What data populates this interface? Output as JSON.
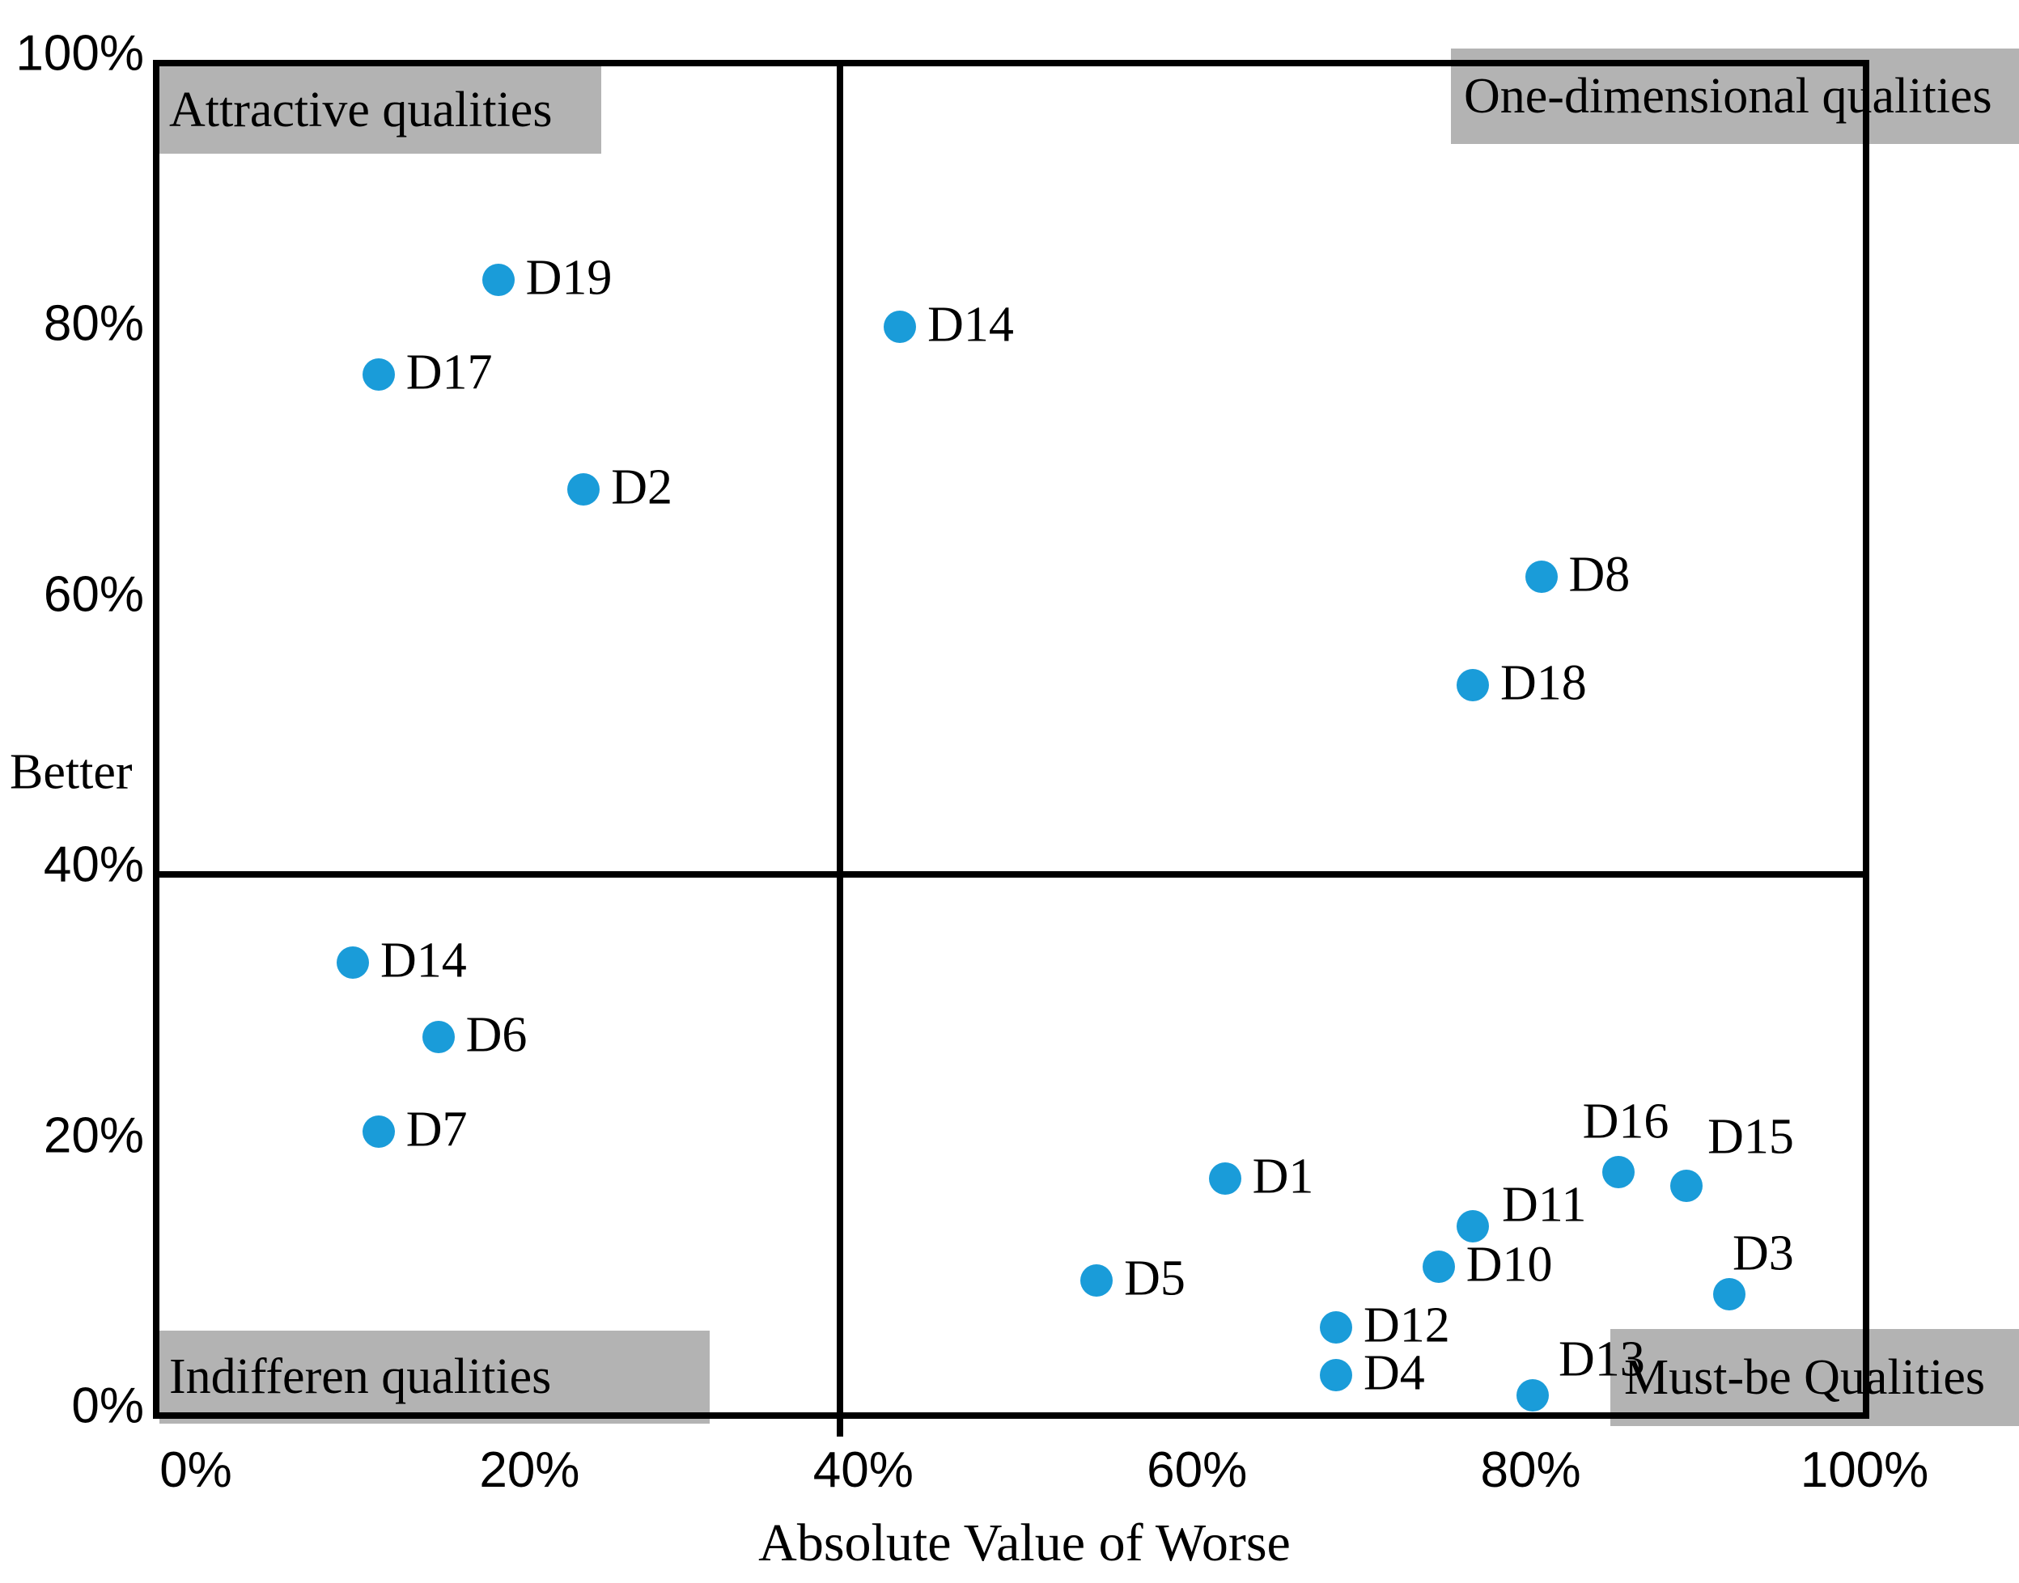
{
  "chart_data": {
    "type": "scatter",
    "title": "",
    "xlabel": "Absolute Value of Worse",
    "ylabel": "Better",
    "xlim": [
      0,
      100
    ],
    "ylim": [
      0,
      100
    ],
    "x_ticks": [
      "0%",
      "20%",
      "40%",
      "60%",
      "80%",
      "100%"
    ],
    "y_ticks": [
      "0%",
      "20%",
      "40%",
      "60%",
      "80%",
      "100%"
    ],
    "grid": false,
    "quadrant_divider_x_pct": 40,
    "quadrant_divider_y_pct": 40,
    "quadrants": [
      {
        "id": "attractive",
        "label": "Attractive qualities",
        "position": "top-left"
      },
      {
        "id": "one-dimensional",
        "label": "One-dimensional qualities",
        "position": "top-right"
      },
      {
        "id": "indifferent",
        "label": "Indifferen qualities",
        "position": "bottom-left"
      },
      {
        "id": "must-be",
        "label": "Must-be Qualities",
        "position": "bottom-right"
      }
    ],
    "points": [
      {
        "label": "D19",
        "x": 20,
        "y": 84,
        "label_pos": "right"
      },
      {
        "label": "D17",
        "x": 13,
        "y": 77,
        "label_pos": "right"
      },
      {
        "label": "D2",
        "x": 25,
        "y": 68.5,
        "label_pos": "right"
      },
      {
        "label": "D14",
        "x": 43.5,
        "y": 80.5,
        "label_pos": "right"
      },
      {
        "label": "D8",
        "x": 81,
        "y": 62,
        "label_pos": "right"
      },
      {
        "label": "D18",
        "x": 77,
        "y": 54,
        "label_pos": "right"
      },
      {
        "label": "D14",
        "x": 11.5,
        "y": 33.5,
        "label_pos": "right"
      },
      {
        "label": "D6",
        "x": 16.5,
        "y": 28,
        "label_pos": "right"
      },
      {
        "label": "D7",
        "x": 13,
        "y": 21,
        "label_pos": "right"
      },
      {
        "label": "D1",
        "x": 62.5,
        "y": 17.5,
        "label_pos": "right"
      },
      {
        "label": "D5",
        "x": 55,
        "y": 10,
        "label_pos": "right"
      },
      {
        "label": "D11",
        "x": 77,
        "y": 14,
        "label_pos": "right-above"
      },
      {
        "label": "D10",
        "x": 75,
        "y": 11,
        "label_pos": "right"
      },
      {
        "label": "D12",
        "x": 69,
        "y": 6.5,
        "label_pos": "right"
      },
      {
        "label": "D4",
        "x": 69,
        "y": 3,
        "label_pos": "right"
      },
      {
        "label": "D13",
        "x": 80.5,
        "y": 1.5,
        "label_pos": "above-near-right"
      },
      {
        "label": "D16",
        "x": 85.5,
        "y": 18,
        "label_pos": "above-left"
      },
      {
        "label": "D15",
        "x": 89.5,
        "y": 17,
        "label_pos": "above-right"
      },
      {
        "label": "D3",
        "x": 92,
        "y": 9,
        "label_pos": "above"
      }
    ],
    "colors": {
      "point": "#1a9cd9",
      "quadrant_label_bg": "#b3b3b3",
      "line": "#000000",
      "background": "#ffffff",
      "text": "#000000"
    }
  }
}
